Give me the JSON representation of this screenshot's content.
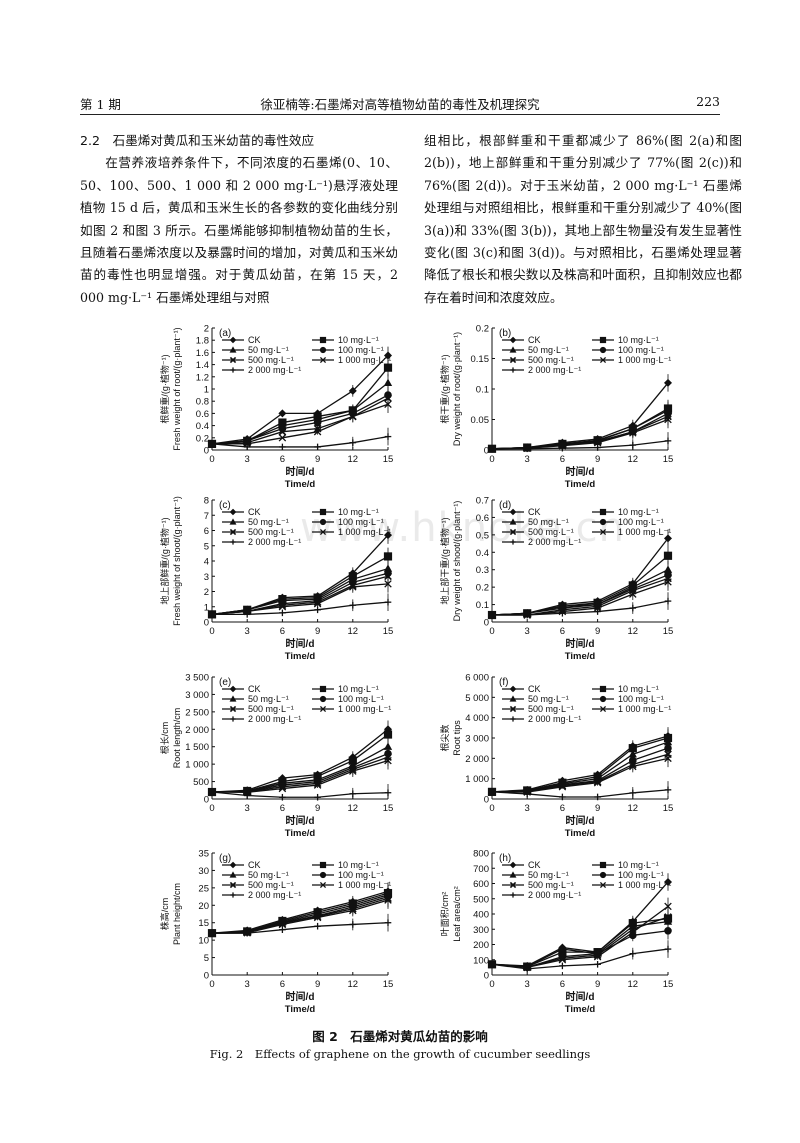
{
  "header": {
    "issue": "第 1 期",
    "running_title": "徐亚楠等:石墨烯对高等植物幼苗的毒性及机理探究",
    "page_number": "223"
  },
  "text": {
    "section_heading": "2.2　石墨烯对黄瓜和玉米幼苗的毒性效应",
    "left_paragraph": "在营养液培养条件下，不同浓度的石墨烯(0、10、50、100、500、1 000 和 2 000 mg·L⁻¹)悬浮液处理植物 15 d 后，黄瓜和玉米生长的各参数的变化曲线分别如图 2 和图 3 所示。石墨烯能够抑制植物幼苗的生长，且随着石墨烯浓度以及暴露时间的增加，对黄瓜和玉米幼苗的毒性也明显增强。对于黄瓜幼苗，在第 15 天，2 000 mg·L⁻¹ 石墨烯处理组与对照",
    "right_paragraph": "组相比，根部鲜重和干重都减少了 86%(图 2(a)和图 2(b))，地上部鲜重和干重分别减少了 77%(图 2(c))和 76%(图 2(d))。对于玉米幼苗，2 000 mg·L⁻¹ 石墨烯处理组与对照组相比，根鲜重和干重分别减少了 40%(图 3(a))和 33%(图 3(b))，其地上部生物量没有发生显著性变化(图 3(c)和图 3(d))。与对照相比，石墨烯处理显著降低了根长和根尖数以及株高和叶面积，且抑制效应也都存在着时间和浓度效应。"
  },
  "watermark": "www.hknoke.cn",
  "figure": {
    "caption_zh": "图 2　石墨烯对黄瓜幼苗的影响",
    "caption_en": "Fig. 2　Effects of graphene on the growth of cucumber seedlings"
  },
  "chart_data": [
    {
      "panel": "(a)",
      "type": "line",
      "ylabel_zh": "根鲜重/(g·植物⁻¹)",
      "ylabel_en": "Fresh weight of root/(g·plant⁻¹)",
      "xlabel_zh": "时间/d",
      "xlabel_en": "Time/d",
      "x": [
        0,
        3,
        6,
        9,
        12,
        15
      ],
      "ylim": [
        0,
        2
      ],
      "yticks": [
        "0",
        "0.2",
        "0.4",
        "0.6",
        "0.8",
        "1",
        "1.2",
        "1.4",
        "1.6",
        "1.8",
        "2"
      ],
      "series": [
        {
          "name": "CK",
          "values": [
            0.1,
            0.18,
            0.6,
            0.6,
            0.97,
            1.55
          ]
        },
        {
          "name": "10 mg·L⁻¹",
          "values": [
            0.1,
            0.15,
            0.45,
            0.55,
            0.65,
            1.35
          ]
        },
        {
          "name": "50 mg·L⁻¹",
          "values": [
            0.1,
            0.15,
            0.4,
            0.5,
            0.65,
            1.1
          ]
        },
        {
          "name": "100 mg·L⁻¹",
          "values": [
            0.1,
            0.15,
            0.35,
            0.45,
            0.6,
            0.9
          ]
        },
        {
          "name": "500 mg·L⁻¹",
          "values": [
            0.1,
            0.12,
            0.3,
            0.35,
            0.55,
            0.85
          ]
        },
        {
          "name": "1 000 mg·L⁻¹",
          "values": [
            0.1,
            0.1,
            0.2,
            0.3,
            0.55,
            0.75
          ]
        },
        {
          "name": "2 000 mg·L⁻¹",
          "values": [
            0.1,
            0.05,
            0.05,
            0.05,
            0.12,
            0.22
          ]
        }
      ]
    },
    {
      "panel": "(b)",
      "type": "line",
      "ylabel_zh": "根干重/(g·植物⁻¹)",
      "ylabel_en": "Dry weight of root/(g·plant⁻¹)",
      "xlabel_zh": "时间/d",
      "xlabel_en": "Time/d",
      "x": [
        0,
        3,
        6,
        9,
        12,
        15
      ],
      "ylim": [
        0,
        0.2
      ],
      "yticks": [
        "0",
        "0.05",
        "0.1",
        "0.15",
        "0.2"
      ],
      "series": [
        {
          "name": "CK",
          "values": [
            0.002,
            0.004,
            0.012,
            0.018,
            0.04,
            0.11
          ]
        },
        {
          "name": "10 mg·L⁻¹",
          "values": [
            0.002,
            0.004,
            0.01,
            0.016,
            0.035,
            0.068
          ]
        },
        {
          "name": "50 mg·L⁻¹",
          "values": [
            0.002,
            0.004,
            0.01,
            0.015,
            0.035,
            0.065
          ]
        },
        {
          "name": "100 mg·L⁻¹",
          "values": [
            0.002,
            0.004,
            0.009,
            0.014,
            0.03,
            0.06
          ]
        },
        {
          "name": "500 mg·L⁻¹",
          "values": [
            0.002,
            0.003,
            0.008,
            0.013,
            0.03,
            0.055
          ]
        },
        {
          "name": "1 000 mg·L⁻¹",
          "values": [
            0.002,
            0.003,
            0.007,
            0.012,
            0.028,
            0.05
          ]
        },
        {
          "name": "2 000 mg·L⁻¹",
          "values": [
            0.002,
            0.002,
            0.003,
            0.004,
            0.008,
            0.015
          ]
        }
      ]
    },
    {
      "panel": "(c)",
      "type": "line",
      "ylabel_zh": "地上部鲜重/(g·植物⁻¹)",
      "ylabel_en": "Fresh weight of shoot/(g·plant⁻¹)",
      "xlabel_zh": "时间/d",
      "xlabel_en": "Time/d",
      "x": [
        0,
        3,
        6,
        9,
        12,
        15
      ],
      "ylim": [
        0,
        8
      ],
      "yticks": [
        "0",
        "1",
        "2",
        "3",
        "4",
        "5",
        "6",
        "7",
        "8"
      ],
      "series": [
        {
          "name": "CK",
          "values": [
            0.5,
            0.8,
            1.6,
            1.7,
            3.2,
            5.7
          ]
        },
        {
          "name": "10 mg·L⁻¹",
          "values": [
            0.5,
            0.8,
            1.5,
            1.6,
            3.0,
            4.3
          ]
        },
        {
          "name": "50 mg·L⁻¹",
          "values": [
            0.5,
            0.8,
            1.4,
            1.5,
            2.8,
            3.5
          ]
        },
        {
          "name": "100 mg·L⁻¹",
          "values": [
            0.5,
            0.7,
            1.2,
            1.4,
            2.6,
            3.2
          ]
        },
        {
          "name": "500 mg·L⁻¹",
          "values": [
            0.5,
            0.7,
            1.1,
            1.3,
            2.4,
            3.0
          ]
        },
        {
          "name": "1 000 mg·L⁻¹",
          "values": [
            0.5,
            0.7,
            1.0,
            1.2,
            2.3,
            2.5
          ]
        },
        {
          "name": "2 000 mg·L⁻¹",
          "values": [
            0.5,
            0.5,
            0.6,
            0.8,
            1.1,
            1.3
          ]
        }
      ]
    },
    {
      "panel": "(d)",
      "type": "line",
      "ylabel_zh": "地上部干重/(g·植物⁻¹)",
      "ylabel_en": "Dry weight of shoot/(g·plant⁻¹)",
      "xlabel_zh": "时间/d",
      "xlabel_en": "Time/d",
      "x": [
        0,
        3,
        6,
        9,
        12,
        15
      ],
      "ylim": [
        0,
        0.7
      ],
      "yticks": [
        "0",
        "0.1",
        "0.2",
        "0.3",
        "0.4",
        "0.5",
        "0.6",
        "0.7"
      ],
      "series": [
        {
          "name": "CK",
          "values": [
            0.04,
            0.05,
            0.1,
            0.12,
            0.22,
            0.48
          ]
        },
        {
          "name": "10 mg·L⁻¹",
          "values": [
            0.04,
            0.05,
            0.09,
            0.11,
            0.21,
            0.38
          ]
        },
        {
          "name": "50 mg·L⁻¹",
          "values": [
            0.04,
            0.05,
            0.09,
            0.1,
            0.2,
            0.3
          ]
        },
        {
          "name": "100 mg·L⁻¹",
          "values": [
            0.04,
            0.05,
            0.08,
            0.1,
            0.19,
            0.27
          ]
        },
        {
          "name": "500 mg·L⁻¹",
          "values": [
            0.04,
            0.04,
            0.07,
            0.09,
            0.18,
            0.25
          ]
        },
        {
          "name": "1 000 mg·L⁻¹",
          "values": [
            0.04,
            0.04,
            0.06,
            0.08,
            0.16,
            0.23
          ]
        },
        {
          "name": "2 000 mg·L⁻¹",
          "values": [
            0.04,
            0.04,
            0.05,
            0.06,
            0.08,
            0.12
          ]
        }
      ]
    },
    {
      "panel": "(e)",
      "type": "line",
      "ylabel_zh": "根长/cm",
      "ylabel_en": "Root length/cm",
      "xlabel_zh": "时间/d",
      "xlabel_en": "Time/d",
      "x": [
        0,
        3,
        6,
        9,
        12,
        15
      ],
      "ylim": [
        0,
        3500
      ],
      "yticks": [
        "0",
        "500",
        "1 000",
        "1 500",
        "2 000",
        "2 500",
        "3 000",
        "3 500"
      ],
      "series": [
        {
          "name": "CK",
          "values": [
            200,
            250,
            600,
            700,
            1200,
            2000
          ]
        },
        {
          "name": "10 mg·L⁻¹",
          "values": [
            200,
            230,
            500,
            650,
            1100,
            1850
          ]
        },
        {
          "name": "50 mg·L⁻¹",
          "values": [
            200,
            220,
            450,
            550,
            950,
            1500
          ]
        },
        {
          "name": "100 mg·L⁻¹",
          "values": [
            200,
            210,
            400,
            500,
            900,
            1300
          ]
        },
        {
          "name": "500 mg·L⁻¹",
          "values": [
            200,
            200,
            350,
            450,
            850,
            1200
          ]
        },
        {
          "name": "1 000 mg·L⁻¹",
          "values": [
            200,
            190,
            300,
            400,
            800,
            1100
          ]
        },
        {
          "name": "2 000 mg·L⁻¹",
          "values": [
            200,
            100,
            50,
            50,
            150,
            180
          ]
        }
      ]
    },
    {
      "panel": "(f)",
      "type": "line",
      "ylabel_zh": "根尖数",
      "ylabel_en": "Root tips",
      "xlabel_zh": "时间/d",
      "xlabel_en": "Time/d",
      "x": [
        0,
        3,
        6,
        9,
        12,
        15
      ],
      "ylim": [
        0,
        6000
      ],
      "yticks": [
        "0",
        "1 000",
        "2 000",
        "3 000",
        "4 000",
        "5 000",
        "6 000"
      ],
      "series": [
        {
          "name": "CK",
          "values": [
            350,
            450,
            900,
            1200,
            2600,
            3100
          ]
        },
        {
          "name": "10 mg·L⁻¹",
          "values": [
            350,
            420,
            800,
            1100,
            2500,
            3000
          ]
        },
        {
          "name": "50 mg·L⁻¹",
          "values": [
            350,
            400,
            750,
            1000,
            2200,
            2800
          ]
        },
        {
          "name": "100 mg·L⁻¹",
          "values": [
            350,
            380,
            700,
            900,
            1900,
            2500
          ]
        },
        {
          "name": "500 mg·L⁻¹",
          "values": [
            350,
            360,
            650,
            850,
            1700,
            2200
          ]
        },
        {
          "name": "1 000 mg·L⁻¹",
          "values": [
            350,
            340,
            600,
            800,
            1600,
            2000
          ]
        },
        {
          "name": "2 000 mg·L⁻¹",
          "values": [
            350,
            250,
            100,
            100,
            300,
            450
          ]
        }
      ]
    },
    {
      "panel": "(g)",
      "type": "line",
      "ylabel_zh": "株高/cm",
      "ylabel_en": "Plant height/cm",
      "xlabel_zh": "时间/d",
      "xlabel_en": "Time/d",
      "x": [
        0,
        3,
        6,
        9,
        12,
        15
      ],
      "ylim": [
        0,
        35
      ],
      "yticks": [
        "0",
        "5",
        "10",
        "15",
        "20",
        "25",
        "30",
        "35"
      ],
      "series": [
        {
          "name": "CK",
          "values": [
            12,
            12.8,
            15.8,
            18.5,
            21,
            24
          ]
        },
        {
          "name": "10 mg·L⁻¹",
          "values": [
            12,
            12.5,
            15.5,
            18,
            20.5,
            23.5
          ]
        },
        {
          "name": "50 mg·L⁻¹",
          "values": [
            12,
            12.4,
            15.2,
            17.5,
            20,
            23
          ]
        },
        {
          "name": "100 mg·L⁻¹",
          "values": [
            12,
            12.3,
            15,
            17,
            19.5,
            22.5
          ]
        },
        {
          "name": "500 mg·L⁻¹",
          "values": [
            12,
            12.2,
            14.8,
            16.8,
            19,
            22
          ]
        },
        {
          "name": "1 000 mg·L⁻¹",
          "values": [
            12,
            12.1,
            14.5,
            16.5,
            18.5,
            21.5
          ]
        },
        {
          "name": "2 000 mg·L⁻¹",
          "values": [
            12,
            12,
            13,
            14,
            14.5,
            15
          ]
        }
      ]
    },
    {
      "panel": "(h)",
      "type": "line",
      "ylabel_zh": "叶面积/cm²",
      "ylabel_en": "Leaf area/cm²",
      "xlabel_zh": "时间/d",
      "xlabel_en": "Time/d",
      "x": [
        0,
        3,
        6,
        9,
        12,
        15
      ],
      "ylim": [
        0,
        800
      ],
      "yticks": [
        "0",
        "100",
        "200",
        "300",
        "400",
        "500",
        "600",
        "700",
        "800"
      ],
      "series": [
        {
          "name": "CK",
          "values": [
            70,
            60,
            180,
            150,
            350,
            610
          ]
        },
        {
          "name": "10 mg·L⁻¹",
          "values": [
            70,
            55,
            150,
            150,
            340,
            370
          ]
        },
        {
          "name": "50 mg·L⁻¹",
          "values": [
            70,
            55,
            170,
            140,
            320,
            350
          ]
        },
        {
          "name": "100 mg·L⁻¹",
          "values": [
            70,
            50,
            120,
            140,
            260,
            290
          ]
        },
        {
          "name": "500 mg·L⁻¹",
          "values": [
            70,
            50,
            110,
            130,
            300,
            380
          ]
        },
        {
          "name": "1 000 mg·L⁻¹",
          "values": [
            70,
            50,
            100,
            120,
            280,
            450
          ]
        },
        {
          "name": "2 000 mg·L⁻¹",
          "values": [
            70,
            40,
            60,
            70,
            140,
            170
          ]
        }
      ]
    }
  ]
}
